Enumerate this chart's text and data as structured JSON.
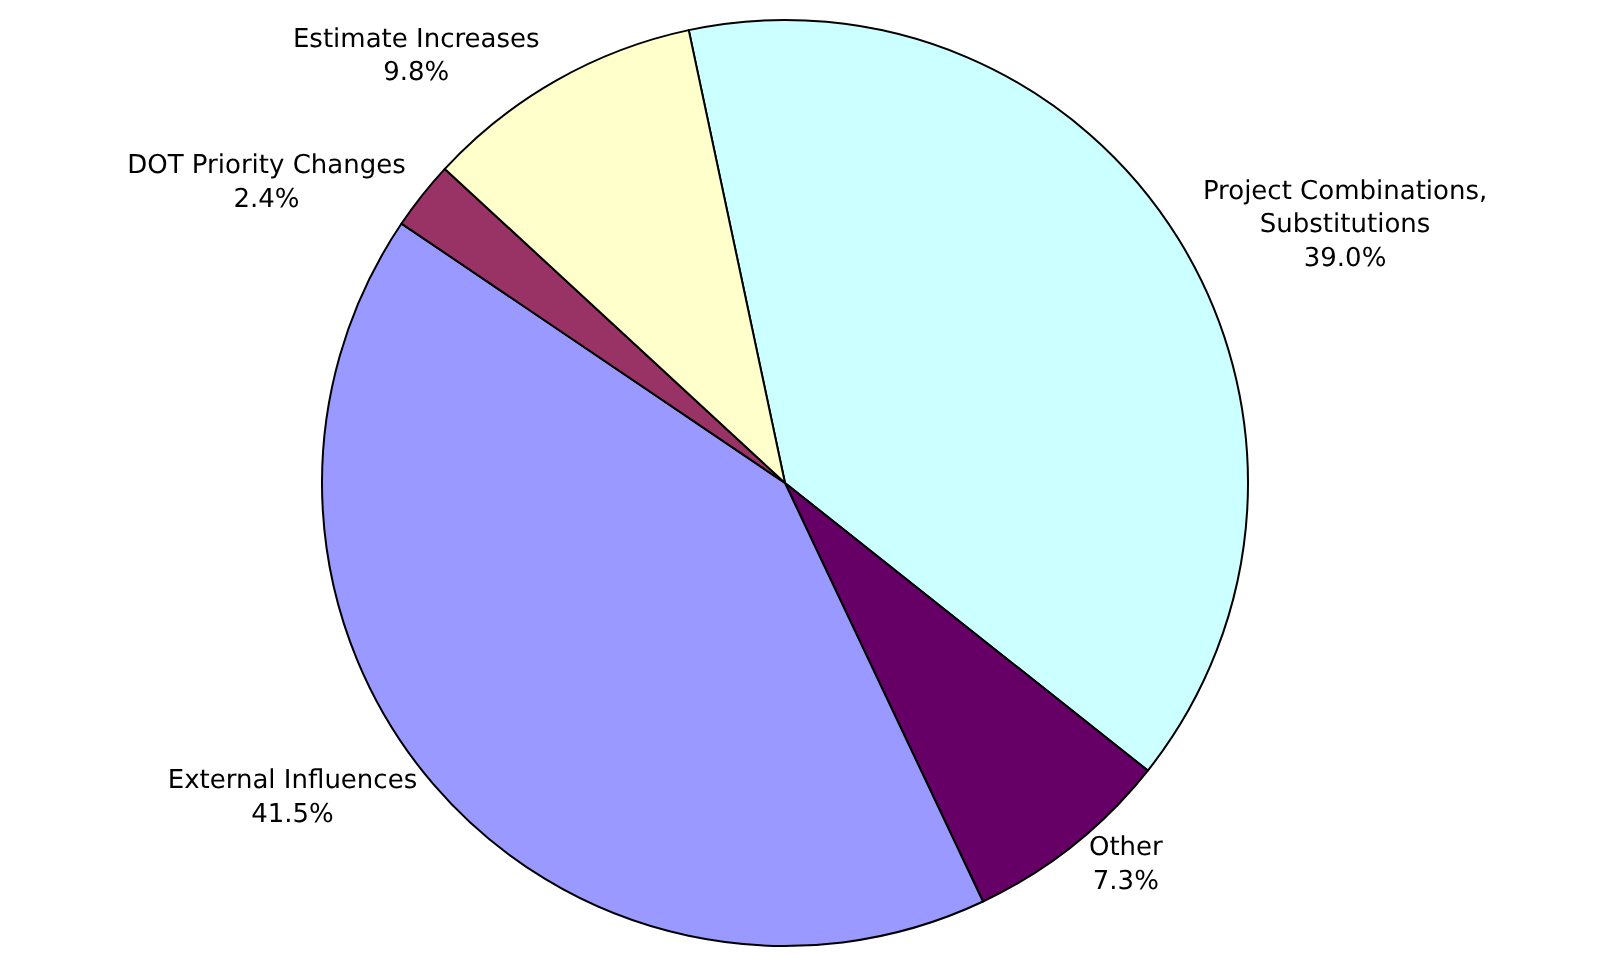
{
  "chart_data": {
    "type": "pie",
    "categories": [
      "Project Combinations, Substitutions",
      "Other",
      "External Influences",
      "DOT Priority Changes",
      "Estimate Increases"
    ],
    "values": [
      39.0,
      7.3,
      41.5,
      2.4,
      9.8
    ],
    "value_labels": [
      "39.0%",
      "7.3%",
      "41.5%",
      "2.4%",
      "9.8%"
    ],
    "colors": [
      "#ccffff",
      "#660066",
      "#9999ff",
      "#993366",
      "#ffffcc"
    ],
    "legend": false
  }
}
